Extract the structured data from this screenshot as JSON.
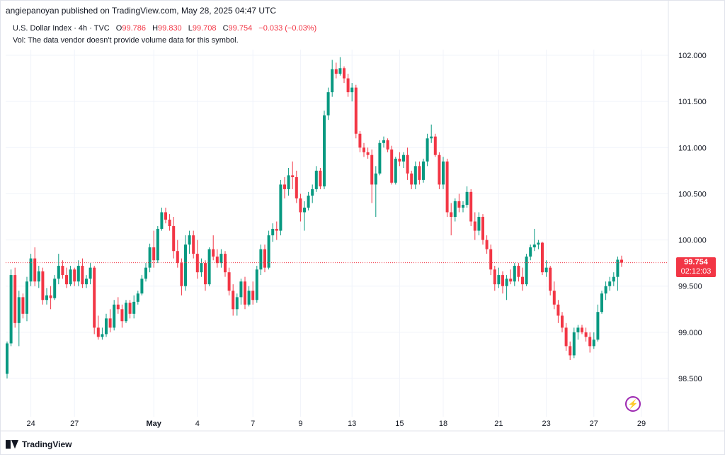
{
  "header": {
    "publisher": "angiepanoyan published on TradingView.com, May 28, 2025 04:47 UTC"
  },
  "legend": {
    "symbol": "U.S. Dollar Index · 4h · TVC",
    "open_label": "O",
    "open": "99.786",
    "high_label": "H",
    "high": "99.830",
    "low_label": "L",
    "low": "99.708",
    "close_label": "C",
    "close": "99.754",
    "change": "−0.033 (−0.03%)",
    "volume_note": "Vol: The data vendor doesn't provide volume data for this symbol."
  },
  "price_tag": {
    "price": "99.754",
    "countdown": "02:12:03"
  },
  "footer": {
    "brand": "TradingView"
  },
  "colors": {
    "up": "#089981",
    "down": "#f23645",
    "grid": "#f0f3fa",
    "axis_text": "#131722"
  },
  "chart_data": {
    "type": "candlestick",
    "title": "U.S. Dollar Index · 4h · TVC",
    "y_ticks": [
      98.5,
      99.0,
      99.5,
      100.0,
      100.5,
      101.0,
      101.5,
      102.0
    ],
    "y_tick_labels": [
      "98.500",
      "99.000",
      "99.500",
      "100.000",
      "100.500",
      "101.000",
      "101.500",
      "102.000"
    ],
    "ylim": [
      98.1,
      102.45
    ],
    "x_ticks": [
      {
        "label": "24",
        "index": 6,
        "bold": false
      },
      {
        "label": "27",
        "index": 17,
        "bold": false
      },
      {
        "label": "May",
        "index": 37,
        "bold": true
      },
      {
        "label": "4",
        "index": 48,
        "bold": false
      },
      {
        "label": "7",
        "index": 62,
        "bold": false
      },
      {
        "label": "9",
        "index": 74,
        "bold": false
      },
      {
        "label": "13",
        "index": 87,
        "bold": false
      },
      {
        "label": "15",
        "index": 99,
        "bold": false
      },
      {
        "label": "18",
        "index": 110,
        "bold": false
      },
      {
        "label": "21",
        "index": 124,
        "bold": false
      },
      {
        "label": "23",
        "index": 136,
        "bold": false
      },
      {
        "label": "27",
        "index": 148,
        "bold": false
      },
      {
        "label": "29",
        "index": 160,
        "bold": false
      }
    ],
    "current_price": 99.754,
    "grid": true,
    "candles": [
      {
        "o": 98.55,
        "h": 98.9,
        "l": 98.5,
        "c": 98.88
      },
      {
        "o": 98.88,
        "h": 99.68,
        "l": 98.85,
        "c": 99.62
      },
      {
        "o": 99.62,
        "h": 99.7,
        "l": 99.05,
        "c": 99.1
      },
      {
        "o": 99.1,
        "h": 99.45,
        "l": 98.85,
        "c": 99.38
      },
      {
        "o": 99.38,
        "h": 99.42,
        "l": 99.15,
        "c": 99.2
      },
      {
        "o": 99.2,
        "h": 99.6,
        "l": 99.12,
        "c": 99.55
      },
      {
        "o": 99.55,
        "h": 99.85,
        "l": 99.5,
        "c": 99.8
      },
      {
        "o": 99.8,
        "h": 99.92,
        "l": 99.5,
        "c": 99.55
      },
      {
        "o": 99.55,
        "h": 99.72,
        "l": 99.48,
        "c": 99.66
      },
      {
        "o": 99.66,
        "h": 99.7,
        "l": 99.3,
        "c": 99.35
      },
      {
        "o": 99.35,
        "h": 99.48,
        "l": 99.3,
        "c": 99.4
      },
      {
        "o": 99.4,
        "h": 99.5,
        "l": 99.25,
        "c": 99.37
      },
      {
        "o": 99.37,
        "h": 99.62,
        "l": 99.35,
        "c": 99.58
      },
      {
        "o": 99.58,
        "h": 99.85,
        "l": 99.52,
        "c": 99.72
      },
      {
        "o": 99.72,
        "h": 99.78,
        "l": 99.58,
        "c": 99.62
      },
      {
        "o": 99.62,
        "h": 99.7,
        "l": 99.48,
        "c": 99.52
      },
      {
        "o": 99.52,
        "h": 99.72,
        "l": 99.5,
        "c": 99.68
      },
      {
        "o": 99.68,
        "h": 99.7,
        "l": 99.5,
        "c": 99.55
      },
      {
        "o": 99.55,
        "h": 99.78,
        "l": 99.5,
        "c": 99.72
      },
      {
        "o": 99.72,
        "h": 99.8,
        "l": 99.48,
        "c": 99.52
      },
      {
        "o": 99.52,
        "h": 99.62,
        "l": 99.48,
        "c": 99.58
      },
      {
        "o": 99.58,
        "h": 99.75,
        "l": 99.52,
        "c": 99.7
      },
      {
        "o": 99.7,
        "h": 99.72,
        "l": 98.98,
        "c": 99.05
      },
      {
        "o": 99.05,
        "h": 99.18,
        "l": 98.92,
        "c": 98.95
      },
      {
        "o": 98.95,
        "h": 99.05,
        "l": 98.92,
        "c": 98.98
      },
      {
        "o": 98.98,
        "h": 99.2,
        "l": 98.95,
        "c": 99.15
      },
      {
        "o": 99.15,
        "h": 99.25,
        "l": 99.0,
        "c": 99.05
      },
      {
        "o": 99.05,
        "h": 99.35,
        "l": 99.02,
        "c": 99.3
      },
      {
        "o": 99.3,
        "h": 99.38,
        "l": 99.2,
        "c": 99.25
      },
      {
        "o": 99.25,
        "h": 99.3,
        "l": 99.05,
        "c": 99.12
      },
      {
        "o": 99.12,
        "h": 99.35,
        "l": 99.1,
        "c": 99.32
      },
      {
        "o": 99.32,
        "h": 99.35,
        "l": 99.15,
        "c": 99.2
      },
      {
        "o": 99.2,
        "h": 99.4,
        "l": 99.15,
        "c": 99.33
      },
      {
        "o": 99.33,
        "h": 99.45,
        "l": 99.3,
        "c": 99.42
      },
      {
        "o": 99.42,
        "h": 99.62,
        "l": 99.4,
        "c": 99.58
      },
      {
        "o": 99.58,
        "h": 99.75,
        "l": 99.55,
        "c": 99.7
      },
      {
        "o": 99.7,
        "h": 99.96,
        "l": 99.65,
        "c": 99.92
      },
      {
        "o": 99.92,
        "h": 100.1,
        "l": 99.7,
        "c": 99.78
      },
      {
        "o": 99.78,
        "h": 100.15,
        "l": 99.75,
        "c": 100.12
      },
      {
        "o": 100.12,
        "h": 100.35,
        "l": 100.1,
        "c": 100.3
      },
      {
        "o": 100.3,
        "h": 100.35,
        "l": 100.18,
        "c": 100.22
      },
      {
        "o": 100.22,
        "h": 100.28,
        "l": 100.1,
        "c": 100.15
      },
      {
        "o": 100.15,
        "h": 100.25,
        "l": 99.8,
        "c": 99.88
      },
      {
        "o": 99.88,
        "h": 100.0,
        "l": 99.7,
        "c": 99.75
      },
      {
        "o": 99.75,
        "h": 99.8,
        "l": 99.4,
        "c": 99.5
      },
      {
        "o": 99.5,
        "h": 100.05,
        "l": 99.45,
        "c": 99.95
      },
      {
        "o": 99.95,
        "h": 100.1,
        "l": 99.85,
        "c": 100.05
      },
      {
        "o": 100.05,
        "h": 100.1,
        "l": 99.8,
        "c": 99.85
      },
      {
        "o": 99.85,
        "h": 100.0,
        "l": 99.58,
        "c": 99.65
      },
      {
        "o": 99.65,
        "h": 99.8,
        "l": 99.6,
        "c": 99.75
      },
      {
        "o": 99.75,
        "h": 99.78,
        "l": 99.45,
        "c": 99.52
      },
      {
        "o": 99.52,
        "h": 99.92,
        "l": 99.5,
        "c": 99.9
      },
      {
        "o": 99.9,
        "h": 100.05,
        "l": 99.78,
        "c": 99.82
      },
      {
        "o": 99.82,
        "h": 99.9,
        "l": 99.7,
        "c": 99.75
      },
      {
        "o": 99.75,
        "h": 99.9,
        "l": 99.7,
        "c": 99.85
      },
      {
        "o": 99.85,
        "h": 99.88,
        "l": 99.6,
        "c": 99.65
      },
      {
        "o": 99.65,
        "h": 99.7,
        "l": 99.4,
        "c": 99.45
      },
      {
        "o": 99.45,
        "h": 99.52,
        "l": 99.18,
        "c": 99.25
      },
      {
        "o": 99.25,
        "h": 99.42,
        "l": 99.18,
        "c": 99.38
      },
      {
        "o": 99.38,
        "h": 99.58,
        "l": 99.3,
        "c": 99.55
      },
      {
        "o": 99.55,
        "h": 99.6,
        "l": 99.25,
        "c": 99.3
      },
      {
        "o": 99.3,
        "h": 99.5,
        "l": 99.28,
        "c": 99.45
      },
      {
        "o": 99.45,
        "h": 99.55,
        "l": 99.3,
        "c": 99.35
      },
      {
        "o": 99.35,
        "h": 99.72,
        "l": 99.32,
        "c": 99.68
      },
      {
        "o": 99.68,
        "h": 99.95,
        "l": 99.62,
        "c": 99.9
      },
      {
        "o": 99.9,
        "h": 99.95,
        "l": 99.65,
        "c": 99.7
      },
      {
        "o": 99.7,
        "h": 100.1,
        "l": 99.68,
        "c": 100.05
      },
      {
        "o": 100.05,
        "h": 100.18,
        "l": 99.98,
        "c": 100.12
      },
      {
        "o": 100.12,
        "h": 100.2,
        "l": 100.0,
        "c": 100.1
      },
      {
        "o": 100.1,
        "h": 100.65,
        "l": 100.05,
        "c": 100.6
      },
      {
        "o": 100.6,
        "h": 100.68,
        "l": 100.45,
        "c": 100.55
      },
      {
        "o": 100.55,
        "h": 100.78,
        "l": 100.48,
        "c": 100.7
      },
      {
        "o": 100.7,
        "h": 100.85,
        "l": 100.55,
        "c": 100.68
      },
      {
        "o": 100.68,
        "h": 100.75,
        "l": 100.4,
        "c": 100.45
      },
      {
        "o": 100.45,
        "h": 100.5,
        "l": 100.2,
        "c": 100.3
      },
      {
        "o": 100.3,
        "h": 100.42,
        "l": 100.1,
        "c": 100.35
      },
      {
        "o": 100.35,
        "h": 100.52,
        "l": 100.32,
        "c": 100.48
      },
      {
        "o": 100.48,
        "h": 100.6,
        "l": 100.4,
        "c": 100.55
      },
      {
        "o": 100.55,
        "h": 100.8,
        "l": 100.52,
        "c": 100.75
      },
      {
        "o": 100.75,
        "h": 100.78,
        "l": 100.55,
        "c": 100.58
      },
      {
        "o": 100.58,
        "h": 101.4,
        "l": 100.55,
        "c": 101.35
      },
      {
        "o": 101.35,
        "h": 101.65,
        "l": 101.3,
        "c": 101.6
      },
      {
        "o": 101.6,
        "h": 101.95,
        "l": 101.55,
        "c": 101.85
      },
      {
        "o": 101.85,
        "h": 101.92,
        "l": 101.75,
        "c": 101.8
      },
      {
        "o": 101.8,
        "h": 101.98,
        "l": 101.78,
        "c": 101.86
      },
      {
        "o": 101.86,
        "h": 101.88,
        "l": 101.7,
        "c": 101.75
      },
      {
        "o": 101.75,
        "h": 101.8,
        "l": 101.55,
        "c": 101.6
      },
      {
        "o": 101.6,
        "h": 101.7,
        "l": 101.5,
        "c": 101.65
      },
      {
        "o": 101.65,
        "h": 101.68,
        "l": 101.1,
        "c": 101.15
      },
      {
        "o": 101.15,
        "h": 101.18,
        "l": 100.95,
        "c": 101.0
      },
      {
        "o": 101.0,
        "h": 101.05,
        "l": 100.9,
        "c": 100.95
      },
      {
        "o": 100.95,
        "h": 101.0,
        "l": 100.88,
        "c": 100.92
      },
      {
        "o": 100.92,
        "h": 100.98,
        "l": 100.4,
        "c": 100.6
      },
      {
        "o": 100.6,
        "h": 100.8,
        "l": 100.25,
        "c": 100.72
      },
      {
        "o": 100.72,
        "h": 101.08,
        "l": 100.7,
        "c": 101.05
      },
      {
        "o": 101.05,
        "h": 101.12,
        "l": 101.0,
        "c": 101.08
      },
      {
        "o": 101.08,
        "h": 101.1,
        "l": 100.95,
        "c": 100.98
      },
      {
        "o": 100.98,
        "h": 101.02,
        "l": 100.6,
        "c": 100.62
      },
      {
        "o": 100.62,
        "h": 100.9,
        "l": 100.6,
        "c": 100.88
      },
      {
        "o": 100.88,
        "h": 100.95,
        "l": 100.8,
        "c": 100.85
      },
      {
        "o": 100.85,
        "h": 100.95,
        "l": 100.78,
        "c": 100.92
      },
      {
        "o": 100.92,
        "h": 101.0,
        "l": 100.65,
        "c": 100.72
      },
      {
        "o": 100.72,
        "h": 100.75,
        "l": 100.55,
        "c": 100.6
      },
      {
        "o": 100.6,
        "h": 100.85,
        "l": 100.55,
        "c": 100.8
      },
      {
        "o": 100.8,
        "h": 100.85,
        "l": 100.6,
        "c": 100.65
      },
      {
        "o": 100.65,
        "h": 100.88,
        "l": 100.62,
        "c": 100.85
      },
      {
        "o": 100.85,
        "h": 101.15,
        "l": 100.8,
        "c": 101.1
      },
      {
        "o": 101.1,
        "h": 101.25,
        "l": 101.05,
        "c": 101.12
      },
      {
        "o": 101.12,
        "h": 101.15,
        "l": 100.9,
        "c": 100.92
      },
      {
        "o": 100.92,
        "h": 100.95,
        "l": 100.55,
        "c": 100.6
      },
      {
        "o": 100.6,
        "h": 100.9,
        "l": 100.55,
        "c": 100.85
      },
      {
        "o": 100.85,
        "h": 100.88,
        "l": 100.25,
        "c": 100.3
      },
      {
        "o": 100.3,
        "h": 100.4,
        "l": 100.05,
        "c": 100.25
      },
      {
        "o": 100.25,
        "h": 100.45,
        "l": 100.2,
        "c": 100.42
      },
      {
        "o": 100.42,
        "h": 100.5,
        "l": 100.3,
        "c": 100.35
      },
      {
        "o": 100.35,
        "h": 100.42,
        "l": 100.3,
        "c": 100.38
      },
      {
        "o": 100.38,
        "h": 100.58,
        "l": 100.35,
        "c": 100.52
      },
      {
        "o": 100.52,
        "h": 100.55,
        "l": 100.15,
        "c": 100.2
      },
      {
        "o": 100.2,
        "h": 100.3,
        "l": 100.0,
        "c": 100.1
      },
      {
        "o": 100.1,
        "h": 100.3,
        "l": 100.05,
        "c": 100.25
      },
      {
        "o": 100.25,
        "h": 100.28,
        "l": 99.95,
        "c": 100.0
      },
      {
        "o": 100.0,
        "h": 100.05,
        "l": 99.85,
        "c": 99.9
      },
      {
        "o": 99.9,
        "h": 99.95,
        "l": 99.62,
        "c": 99.68
      },
      {
        "o": 99.68,
        "h": 99.72,
        "l": 99.45,
        "c": 99.52
      },
      {
        "o": 99.52,
        "h": 99.7,
        "l": 99.48,
        "c": 99.62
      },
      {
        "o": 99.62,
        "h": 99.66,
        "l": 99.42,
        "c": 99.5
      },
      {
        "o": 99.5,
        "h": 99.62,
        "l": 99.35,
        "c": 99.58
      },
      {
        "o": 99.58,
        "h": 99.68,
        "l": 99.52,
        "c": 99.55
      },
      {
        "o": 99.55,
        "h": 99.75,
        "l": 99.5,
        "c": 99.72
      },
      {
        "o": 99.72,
        "h": 99.75,
        "l": 99.55,
        "c": 99.6
      },
      {
        "o": 99.6,
        "h": 99.7,
        "l": 99.45,
        "c": 99.52
      },
      {
        "o": 99.52,
        "h": 99.85,
        "l": 99.5,
        "c": 99.82
      },
      {
        "o": 99.82,
        "h": 99.95,
        "l": 99.78,
        "c": 99.92
      },
      {
        "o": 99.92,
        "h": 100.12,
        "l": 99.88,
        "c": 99.95
      },
      {
        "o": 99.95,
        "h": 100.0,
        "l": 99.9,
        "c": 99.97
      },
      {
        "o": 99.97,
        "h": 99.98,
        "l": 99.62,
        "c": 99.65
      },
      {
        "o": 99.65,
        "h": 99.78,
        "l": 99.6,
        "c": 99.7
      },
      {
        "o": 99.7,
        "h": 99.72,
        "l": 99.4,
        "c": 99.45
      },
      {
        "o": 99.45,
        "h": 99.55,
        "l": 99.25,
        "c": 99.3
      },
      {
        "o": 99.3,
        "h": 99.35,
        "l": 99.1,
        "c": 99.18
      },
      {
        "o": 99.18,
        "h": 99.22,
        "l": 99.0,
        "c": 99.05
      },
      {
        "o": 99.05,
        "h": 99.1,
        "l": 98.8,
        "c": 98.85
      },
      {
        "o": 98.85,
        "h": 98.9,
        "l": 98.7,
        "c": 98.75
      },
      {
        "o": 98.75,
        "h": 99.05,
        "l": 98.72,
        "c": 99.0
      },
      {
        "o": 99.0,
        "h": 99.08,
        "l": 98.92,
        "c": 99.05
      },
      {
        "o": 99.05,
        "h": 99.08,
        "l": 98.98,
        "c": 99.0
      },
      {
        "o": 99.0,
        "h": 99.05,
        "l": 98.9,
        "c": 98.95
      },
      {
        "o": 98.95,
        "h": 99.0,
        "l": 98.78,
        "c": 98.85
      },
      {
        "o": 98.85,
        "h": 99.0,
        "l": 98.82,
        "c": 98.92
      },
      {
        "o": 98.92,
        "h": 99.3,
        "l": 98.9,
        "c": 99.22
      },
      {
        "o": 99.22,
        "h": 99.45,
        "l": 99.2,
        "c": 99.42
      },
      {
        "o": 99.42,
        "h": 99.55,
        "l": 99.35,
        "c": 99.5
      },
      {
        "o": 99.5,
        "h": 99.6,
        "l": 99.45,
        "c": 99.55
      },
      {
        "o": 99.55,
        "h": 99.65,
        "l": 99.5,
        "c": 99.6
      },
      {
        "o": 99.6,
        "h": 99.82,
        "l": 99.45,
        "c": 99.786
      },
      {
        "o": 99.786,
        "h": 99.83,
        "l": 99.708,
        "c": 99.754
      }
    ]
  }
}
